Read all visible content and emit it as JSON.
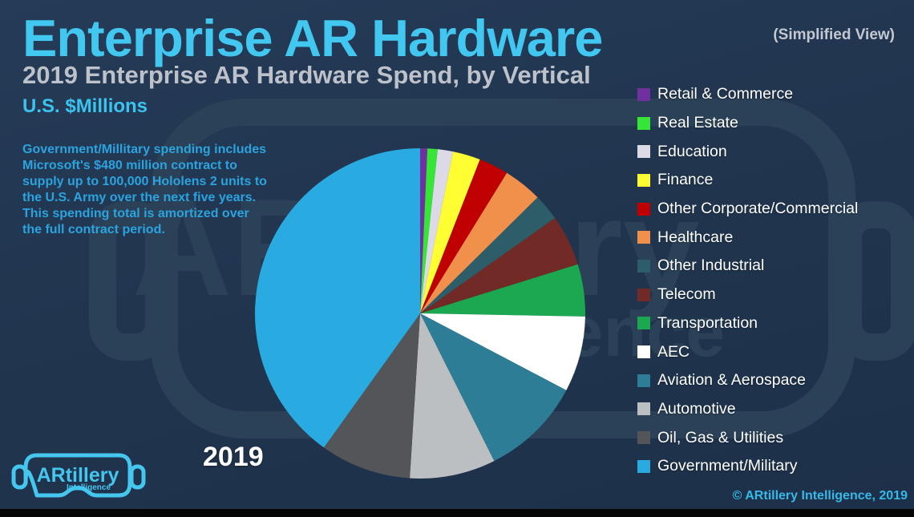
{
  "header": {
    "title": "Enterprise AR Hardware",
    "view_note": "(Simplified View)",
    "subtitle": "2019 Enterprise AR Hardware Spend, by Vertical",
    "units": "U.S. $Millions"
  },
  "annotation": "Government/Millitary spending includes Microsoft's $480 million contract to supply up to 100,000 Hololens 2 units to the U.S. Army over the next five years. This spending total is amortized over the full contract period.",
  "year_label": "2019",
  "logo": {
    "brand": "ARtillery",
    "sub": "Intelligence"
  },
  "footer": {
    "copyright": "© ARtillery Intelligence, 2019"
  },
  "theme": {
    "background": "#21354f",
    "title_cyan": "#41c7f0",
    "subtitle_gray": "#bdc1c9",
    "note_blue": "#2ba3df",
    "legend_text": "#ffffff",
    "footer_cyan": "#36b9e8",
    "logo_cyan": "#45c6ef",
    "bottom_bar": "#060606"
  },
  "chart_data": {
    "type": "pie",
    "title": "2019 Enterprise AR Hardware Spend, by Vertical",
    "units": "U.S. $Millions",
    "year": "2019",
    "start_angle_deg": 0,
    "direction": "clockwise",
    "legend_position": "right",
    "segments": [
      {
        "label": "Retail & Commerce",
        "percent": 0.7,
        "color": "#7030a0"
      },
      {
        "label": "Real Estate",
        "percent": 1.0,
        "color": "#36e636"
      },
      {
        "label": "Education",
        "percent": 1.5,
        "color": "#dddae8"
      },
      {
        "label": "Finance",
        "percent": 2.7,
        "color": "#fefe33"
      },
      {
        "label": "Other Corporate/Commercial",
        "percent": 2.9,
        "color": "#c00000"
      },
      {
        "label": "Healthcare",
        "percent": 3.8,
        "color": "#f0904b"
      },
      {
        "label": "Other Industrial",
        "percent": 2.6,
        "color": "#2c5d68"
      },
      {
        "label": "Telecom",
        "percent": 5.0,
        "color": "#722a26"
      },
      {
        "label": "Transportation",
        "percent": 5.1,
        "color": "#1ca851"
      },
      {
        "label": "AEC",
        "percent": 7.4,
        "color": "#ffffff"
      },
      {
        "label": "Aviation & Aerospace",
        "percent": 9.9,
        "color": "#2c7d95"
      },
      {
        "label": "Automotive",
        "percent": 8.4,
        "color": "#bcbfc1"
      },
      {
        "label": "Oil, Gas & Utilities",
        "percent": 8.9,
        "color": "#535559"
      },
      {
        "label": "Government/Military",
        "percent": 40.1,
        "color": "#29abe2"
      }
    ]
  }
}
